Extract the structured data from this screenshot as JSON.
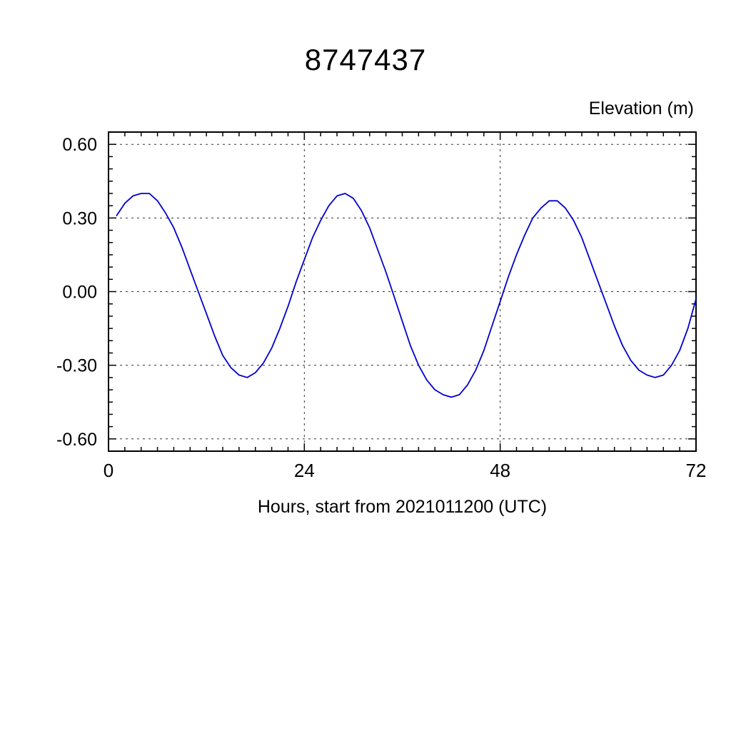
{
  "chart_data": {
    "type": "line",
    "title": "8747437",
    "ylabel": "Elevation (m)",
    "xlabel": "Hours, start from 2021011200 (UTC)",
    "line_color": "#0000cc",
    "grid": "dashed lines at major ticks",
    "legend": "none",
    "xlim": [
      0,
      72
    ],
    "ylim": [
      -0.65,
      0.65
    ],
    "xticks": {
      "values": [
        0,
        24,
        48,
        72
      ],
      "labels": [
        "0",
        "24",
        "48",
        "72"
      ]
    },
    "yticks": {
      "values": [
        0.6,
        0.3,
        0,
        -0.3,
        -0.6
      ],
      "labels": [
        "0.60",
        "0.30",
        "0.00",
        "-0.30",
        "-0.60"
      ]
    },
    "x_minor_step": 2,
    "y_minor_step": 0.05,
    "x": [
      1,
      2,
      3,
      4,
      5,
      6,
      7,
      8,
      9,
      10,
      11,
      12,
      13,
      14,
      15,
      16,
      17,
      18,
      19,
      20,
      21,
      22,
      23,
      24,
      25,
      26,
      27,
      28,
      29,
      30,
      31,
      32,
      33,
      34,
      35,
      36,
      37,
      38,
      39,
      40,
      41,
      42,
      43,
      44,
      45,
      46,
      47,
      48,
      49,
      50,
      51,
      52,
      53,
      54,
      55,
      56,
      57,
      58,
      59,
      60,
      61,
      62,
      63,
      64,
      65,
      66,
      67,
      68,
      69,
      70,
      71,
      72
    ],
    "values": [
      0.31,
      0.36,
      0.39,
      0.4,
      0.4,
      0.37,
      0.32,
      0.26,
      0.18,
      0.09,
      0.0,
      -0.09,
      -0.18,
      -0.26,
      -0.31,
      -0.34,
      -0.35,
      -0.33,
      -0.29,
      -0.23,
      -0.15,
      -0.06,
      0.04,
      0.13,
      0.22,
      0.29,
      0.35,
      0.39,
      0.4,
      0.38,
      0.33,
      0.26,
      0.17,
      0.08,
      -0.02,
      -0.12,
      -0.22,
      -0.3,
      -0.36,
      -0.4,
      -0.42,
      -0.43,
      -0.42,
      -0.38,
      -0.32,
      -0.24,
      -0.14,
      -0.04,
      0.06,
      0.15,
      0.23,
      0.3,
      0.34,
      0.37,
      0.37,
      0.34,
      0.29,
      0.22,
      0.13,
      0.04,
      -0.05,
      -0.14,
      -0.22,
      -0.28,
      -0.32,
      -0.34,
      -0.35,
      -0.34,
      -0.3,
      -0.24,
      -0.15,
      -0.03
    ]
  }
}
